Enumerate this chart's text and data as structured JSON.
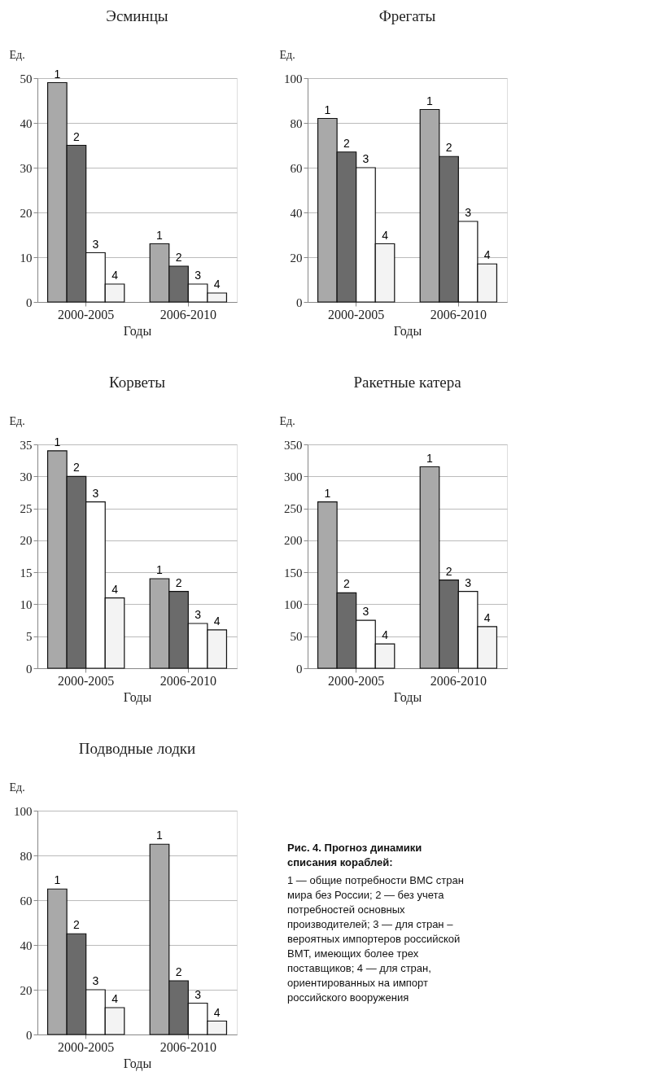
{
  "chart_data": [
    {
      "type": "bar",
      "title": "Эсминцы",
      "ylabel": "Ед.",
      "xlabel": "Годы",
      "categories": [
        "2000-2005",
        "2006-2010"
      ],
      "ylim": [
        0,
        50
      ],
      "yticks": [
        0,
        10,
        20,
        30,
        40,
        50
      ],
      "grid": "y",
      "legend": false,
      "series": [
        {
          "name": "1",
          "color": "#a9a9a9",
          "values": [
            49,
            13
          ]
        },
        {
          "name": "2",
          "color": "#6b6b6b",
          "values": [
            35,
            8
          ]
        },
        {
          "name": "3",
          "color": "#ffffff",
          "values": [
            11,
            4
          ]
        },
        {
          "name": "4",
          "color": "#f3f3f3",
          "values": [
            4,
            2
          ]
        }
      ]
    },
    {
      "type": "bar",
      "title": "Фрегаты",
      "ylabel": "Ед.",
      "xlabel": "Годы",
      "categories": [
        "2000-2005",
        "2006-2010"
      ],
      "ylim": [
        0,
        100
      ],
      "yticks": [
        0,
        20,
        40,
        60,
        80,
        100
      ],
      "grid": "y",
      "legend": false,
      "series": [
        {
          "name": "1",
          "color": "#a9a9a9",
          "values": [
            82,
            86
          ]
        },
        {
          "name": "2",
          "color": "#6b6b6b",
          "values": [
            67,
            65
          ]
        },
        {
          "name": "3",
          "color": "#ffffff",
          "values": [
            60,
            36
          ]
        },
        {
          "name": "4",
          "color": "#f3f3f3",
          "values": [
            26,
            17
          ]
        }
      ]
    },
    {
      "type": "bar",
      "title": "Корветы",
      "ylabel": "Ед.",
      "xlabel": "Годы",
      "categories": [
        "2000-2005",
        "2006-2010"
      ],
      "ylim": [
        0,
        35
      ],
      "yticks": [
        0,
        5,
        10,
        15,
        20,
        25,
        30,
        35
      ],
      "grid": "y",
      "legend": false,
      "series": [
        {
          "name": "1",
          "color": "#a9a9a9",
          "values": [
            34,
            14
          ]
        },
        {
          "name": "2",
          "color": "#6b6b6b",
          "values": [
            30,
            12
          ]
        },
        {
          "name": "3",
          "color": "#ffffff",
          "values": [
            26,
            7
          ]
        },
        {
          "name": "4",
          "color": "#f3f3f3",
          "values": [
            11,
            6
          ]
        }
      ]
    },
    {
      "type": "bar",
      "title": "Ракетные катера",
      "ylabel": "Ед.",
      "xlabel": "Годы",
      "categories": [
        "2000-2005",
        "2006-2010"
      ],
      "ylim": [
        0,
        350
      ],
      "yticks": [
        0,
        50,
        100,
        150,
        200,
        250,
        300,
        350
      ],
      "grid": "y",
      "legend": false,
      "series": [
        {
          "name": "1",
          "color": "#a9a9a9",
          "values": [
            260,
            315
          ]
        },
        {
          "name": "2",
          "color": "#6b6b6b",
          "values": [
            118,
            138
          ]
        },
        {
          "name": "3",
          "color": "#ffffff",
          "values": [
            75,
            120
          ]
        },
        {
          "name": "4",
          "color": "#f3f3f3",
          "values": [
            38,
            65
          ]
        }
      ]
    },
    {
      "type": "bar",
      "title": "Подводные лодки",
      "ylabel": "Ед.",
      "xlabel": "Годы",
      "categories": [
        "2000-2005",
        "2006-2010"
      ],
      "ylim": [
        0,
        100
      ],
      "yticks": [
        0,
        20,
        40,
        60,
        80,
        100
      ],
      "grid": "y",
      "legend": false,
      "series": [
        {
          "name": "1",
          "color": "#a9a9a9",
          "values": [
            65,
            85
          ]
        },
        {
          "name": "2",
          "color": "#6b6b6b",
          "values": [
            45,
            24
          ]
        },
        {
          "name": "3",
          "color": "#ffffff",
          "values": [
            20,
            14
          ]
        },
        {
          "name": "4",
          "color": "#f3f3f3",
          "values": [
            12,
            6
          ]
        }
      ],
      "annotations": [
        "Рис. 4. Прогноз динамики списания кораблей:",
        "1 — общие потребности ВМС стран мира без России; 2 — без учета потребностей основных производителей; 3 — для стран – вероятных импортеров российской ВМТ, имеющих более трех поставщиков; 4 — для стран, ориентированных на импорт российского вооружения"
      ]
    }
  ]
}
